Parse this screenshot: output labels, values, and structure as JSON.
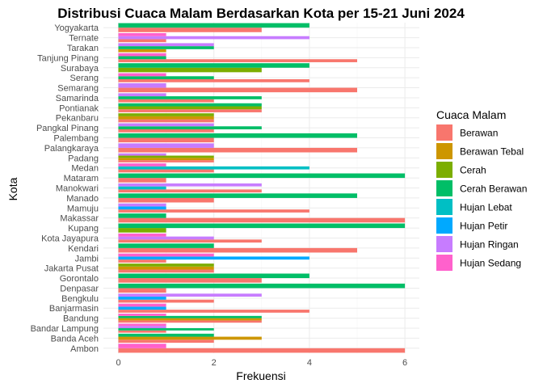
{
  "chart_data": {
    "type": "bar",
    "orientation": "horizontal",
    "position": "dodge",
    "title": "Distribusi Cuaca Malam Berdasarkan Kota per 15-21 Juni 2024",
    "xlabel": "Frekuensi",
    "ylabel": "Kota",
    "xlim": [
      0,
      6.3
    ],
    "xticks": [
      0,
      2,
      4,
      6
    ],
    "grid": true,
    "legend": {
      "title": "Cuaca Malam",
      "position": "right"
    },
    "series": [
      {
        "name": "Berawan",
        "color": "#F8766D"
      },
      {
        "name": "Berawan Tebal",
        "color": "#CD9600"
      },
      {
        "name": "Cerah",
        "color": "#7CAE00"
      },
      {
        "name": "Cerah Berawan",
        "color": "#00BE67"
      },
      {
        "name": "Hujan Lebat",
        "color": "#00BFC4"
      },
      {
        "name": "Hujan Petir",
        "color": "#00A9FF"
      },
      {
        "name": "Hujan Ringan",
        "color": "#C77CFF"
      },
      {
        "name": "Hujan Sedang",
        "color": "#FF61CC"
      }
    ],
    "categories": [
      {
        "name": "Ambon",
        "values": {
          "Berawan": 6,
          "Hujan Sedang": 1
        }
      },
      {
        "name": "Banda Aceh",
        "values": {
          "Berawan": 2,
          "Berawan Tebal": 3,
          "Cerah Berawan": 2
        }
      },
      {
        "name": "Bandar Lampung",
        "values": {
          "Berawan": 1,
          "Cerah Berawan": 2,
          "Hujan Ringan": 1,
          "Hujan Sedang": 1
        }
      },
      {
        "name": "Bandung",
        "values": {
          "Berawan": 3,
          "Berawan Tebal": 3,
          "Cerah Berawan": 3,
          "Hujan Sedang": 1
        }
      },
      {
        "name": "Banjarmasin",
        "values": {
          "Berawan": 4,
          "Hujan Petir": 1,
          "Hujan Sedang": 1
        }
      },
      {
        "name": "Bengkulu",
        "values": {
          "Berawan": 2,
          "Hujan Petir": 1,
          "Hujan Ringan": 3
        }
      },
      {
        "name": "Denpasar",
        "values": {
          "Berawan": 1,
          "Cerah Berawan": 6
        }
      },
      {
        "name": "Gorontalo",
        "values": {
          "Berawan": 3,
          "Cerah Berawan": 4
        }
      },
      {
        "name": "Jakarta Pusat",
        "values": {
          "Berawan": 2,
          "Berawan Tebal": 2,
          "Cerah": 2
        }
      },
      {
        "name": "Jambi",
        "values": {
          "Berawan": 1,
          "Hujan Petir": 4,
          "Hujan Sedang": 2
        }
      },
      {
        "name": "Kendari",
        "values": {
          "Berawan": 5,
          "Cerah Berawan": 2
        }
      },
      {
        "name": "Kota Jayapura",
        "values": {
          "Berawan": 3,
          "Hujan Ringan": 2,
          "Hujan Sedang": 1
        }
      },
      {
        "name": "Kupang",
        "values": {
          "Cerah": 1,
          "Cerah Berawan": 6
        }
      },
      {
        "name": "Makassar",
        "values": {
          "Berawan": 6,
          "Cerah Berawan": 1
        }
      },
      {
        "name": "Mamuju",
        "values": {
          "Berawan": 4,
          "Hujan Petir": 1,
          "Hujan Ringan": 1
        }
      },
      {
        "name": "Manado",
        "values": {
          "Berawan": 2,
          "Cerah Berawan": 5
        }
      },
      {
        "name": "Manokwari",
        "values": {
          "Berawan": 3,
          "Hujan Lebat": 1,
          "Hujan Ringan": 3
        }
      },
      {
        "name": "Mataram",
        "values": {
          "Berawan": 1,
          "Cerah Berawan": 6
        }
      },
      {
        "name": "Medan",
        "values": {
          "Berawan": 2,
          "Hujan Lebat": 4,
          "Hujan Sedang": 1
        }
      },
      {
        "name": "Padang",
        "values": {
          "Berawan": 2,
          "Berawan Tebal": 2,
          "Cerah": 2,
          "Hujan Ringan": 1
        }
      },
      {
        "name": "Palangkaraya",
        "values": {
          "Berawan": 5,
          "Hujan Ringan": 2
        }
      },
      {
        "name": "Palembang",
        "values": {
          "Berawan": 2,
          "Cerah Berawan": 5
        }
      },
      {
        "name": "Pangkal Pinang",
        "values": {
          "Berawan": 2,
          "Cerah Berawan": 3,
          "Hujan Ringan": 2
        }
      },
      {
        "name": "Pekanbaru",
        "values": {
          "Berawan": 2,
          "Berawan Tebal": 2,
          "Cerah": 2
        }
      },
      {
        "name": "Pontianak",
        "values": {
          "Berawan": 3,
          "Cerah": 3,
          "Cerah Berawan": 3
        }
      },
      {
        "name": "Samarinda",
        "values": {
          "Berawan": 2,
          "Cerah Berawan": 3,
          "Hujan Ringan": 1
        }
      },
      {
        "name": "Semarang",
        "values": {
          "Berawan": 5,
          "Hujan Ringan": 1
        }
      },
      {
        "name": "Serang",
        "values": {
          "Berawan": 4,
          "Cerah Berawan": 2,
          "Hujan Sedang": 1
        }
      },
      {
        "name": "Surabaya",
        "values": {
          "Cerah": 3,
          "Cerah Berawan": 4
        }
      },
      {
        "name": "Tanjung Pinang",
        "values": {
          "Berawan": 5,
          "Cerah Berawan": 1,
          "Hujan Sedang": 1
        }
      },
      {
        "name": "Tarakan",
        "values": {
          "Berawan Tebal": 1,
          "Cerah Berawan": 2,
          "Hujan Ringan": 2
        }
      },
      {
        "name": "Ternate",
        "values": {
          "Berawan": 1,
          "Hujan Ringan": 4,
          "Hujan Sedang": 1
        }
      },
      {
        "name": "Yogyakarta",
        "values": {
          "Berawan": 3,
          "Cerah Berawan": 4
        }
      }
    ]
  }
}
